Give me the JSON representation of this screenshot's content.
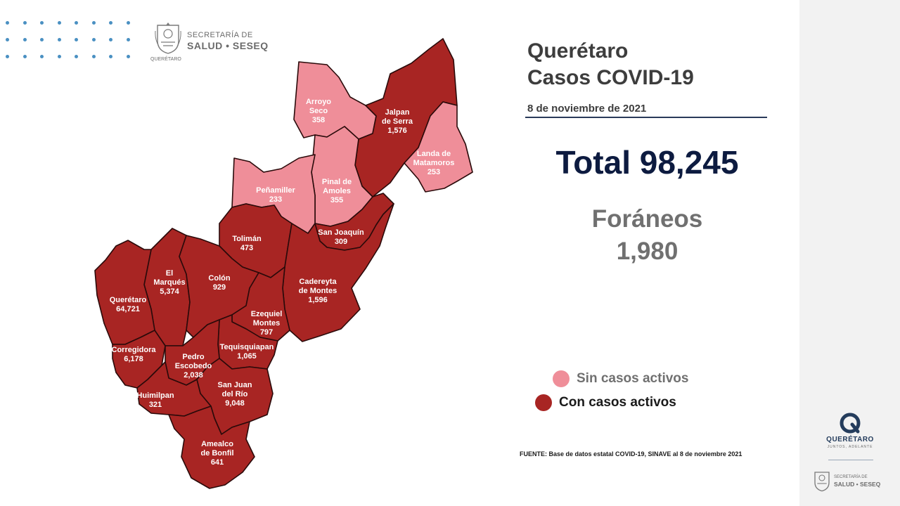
{
  "header": {
    "agency_line1": "SECRETARÍA DE",
    "agency_line2": "SALUD • SESEQ",
    "agency_sub": "QUERÉTARO"
  },
  "title": {
    "line1": "Querétaro",
    "line2": "Casos COVID-19",
    "date": "8 de noviembre de 2021"
  },
  "total": "Total 98,245",
  "foraneos": {
    "label": "Foráneos",
    "value": "1,980"
  },
  "legend": [
    {
      "label": "Sin casos activos",
      "color": "#ef8e99"
    },
    {
      "label": "Con casos activos",
      "color": "#a82523"
    }
  ],
  "source": "FUENTE: Base de datos estatal  COVID-19,  SINAVE  al 8 de noviembre 2021",
  "map": {
    "municipalities": [
      {
        "name": "Arroyo Seco",
        "lines": [
          "Arroyo",
          "Seco"
        ],
        "cases": "358",
        "status": "inactive"
      },
      {
        "name": "Jalpan de Serra",
        "lines": [
          "Jalpan",
          "de Serra"
        ],
        "cases": "1,576",
        "status": "active"
      },
      {
        "name": "Landa de Matamoros",
        "lines": [
          "Landa de",
          "Matamoros"
        ],
        "cases": "253",
        "status": "inactive"
      },
      {
        "name": "Pinal de Amoles",
        "lines": [
          "Pinal de",
          "Amoles"
        ],
        "cases": "355",
        "status": "inactive"
      },
      {
        "name": "Peñamiller",
        "lines": [
          "Peñamiller"
        ],
        "cases": "233",
        "status": "inactive"
      },
      {
        "name": "San Joaquín",
        "lines": [
          "San Joaquín"
        ],
        "cases": "309",
        "status": "active"
      },
      {
        "name": "Tolimán",
        "lines": [
          "Tolimán"
        ],
        "cases": "473",
        "status": "active"
      },
      {
        "name": "Cadereyta de Montes",
        "lines": [
          "Cadereyta",
          "de Montes"
        ],
        "cases": "1,596",
        "status": "active"
      },
      {
        "name": "El Marqués",
        "lines": [
          "El",
          "Marqués"
        ],
        "cases": "5,374",
        "status": "active"
      },
      {
        "name": "Colón",
        "lines": [
          "Colón"
        ],
        "cases": "929",
        "status": "active"
      },
      {
        "name": "Querétaro",
        "lines": [
          "Querétaro"
        ],
        "cases": "64,721",
        "status": "active"
      },
      {
        "name": "Ezequiel Montes",
        "lines": [
          "Ezequiel",
          "Montes"
        ],
        "cases": "797",
        "status": "active"
      },
      {
        "name": "Corregidora",
        "lines": [
          "Corregidora"
        ],
        "cases": "6,178",
        "status": "active"
      },
      {
        "name": "Tequisquiapan",
        "lines": [
          "Tequisquiapan"
        ],
        "cases": "1,065",
        "status": "active"
      },
      {
        "name": "Pedro Escobedo",
        "lines": [
          "Pedro",
          "Escobedo"
        ],
        "cases": "2,038",
        "status": "active"
      },
      {
        "name": "San Juan del Río",
        "lines": [
          "San Juan",
          "del Río"
        ],
        "cases": "9,048",
        "status": "active"
      },
      {
        "name": "Huimilpan",
        "lines": [
          "Huimilpan"
        ],
        "cases": "321",
        "status": "active"
      },
      {
        "name": "Amealco de Bonfil",
        "lines": [
          "Amealco",
          "de Bonfil"
        ],
        "cases": "641",
        "status": "active"
      }
    ]
  },
  "brand": {
    "name": "QUERÉTARO",
    "tagline": "JUNTOS, ADELANTE",
    "footer_line1": "SECRETARÍA DE",
    "footer_line2": "SALUD • SESEQ"
  },
  "colors": {
    "active": "#a82523",
    "inactive": "#ef8e99",
    "title": "#3d3d3d",
    "total": "#0d1b40",
    "foraneos": "#707070"
  },
  "icons": [
    "state-seal-icon",
    "queretaro-q-logo-icon"
  ]
}
